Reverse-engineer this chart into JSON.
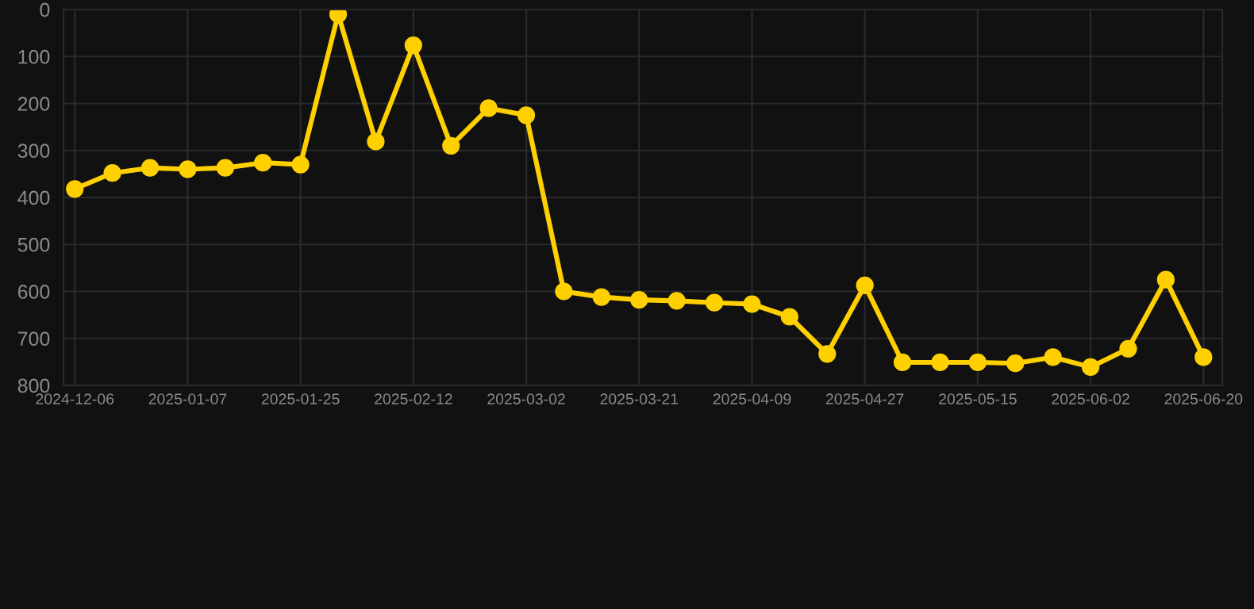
{
  "chart_data": {
    "type": "line",
    "categories": [
      "2024-12-06",
      null,
      null,
      "2025-01-07",
      null,
      null,
      "2025-01-25",
      null,
      null,
      "2025-02-12",
      null,
      null,
      "2025-03-02",
      null,
      null,
      "2025-03-21",
      null,
      null,
      "2025-04-09",
      null,
      null,
      "2025-04-27",
      null,
      null,
      "2025-05-15",
      null,
      null,
      "2025-06-02",
      null,
      null,
      "2025-06-20"
    ],
    "series": [
      {
        "color": "#ffd000",
        "values": [
          382,
          348,
          337,
          340,
          337,
          326,
          330,
          10,
          281,
          76,
          290,
          210,
          225,
          600,
          612,
          618,
          620,
          624,
          627,
          654,
          733,
          587,
          751,
          751,
          751,
          753,
          740,
          761,
          722,
          575,
          740
        ]
      }
    ],
    "ylim": [
      800,
      0
    ],
    "yticks": [
      0,
      100,
      200,
      300,
      400,
      500,
      600,
      700,
      800
    ],
    "grid": true,
    "marker": "circle",
    "line_style": "solid"
  }
}
